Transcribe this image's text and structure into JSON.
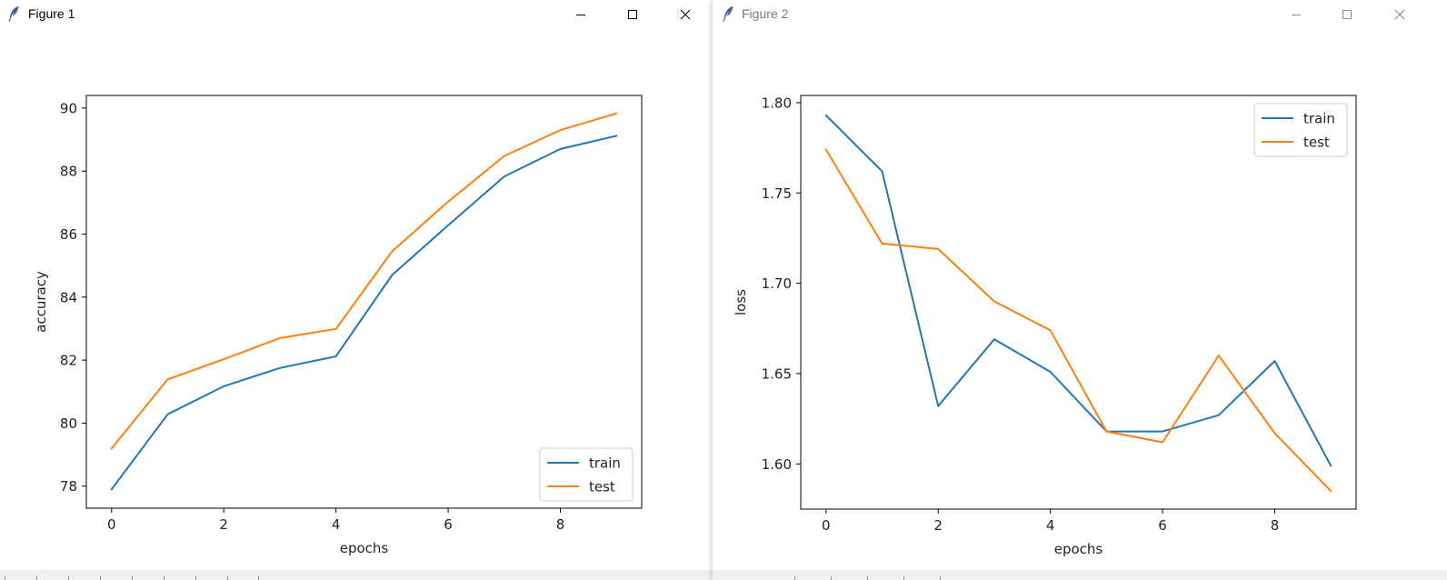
{
  "theme": {
    "train_color": "#1f77b4",
    "test_color": "#ff7f0e",
    "inactive_title_color": "#7a7a7a"
  },
  "windows": [
    {
      "title": "Figure 1",
      "active": true,
      "icons": [
        "feather-icon",
        "minimize-icon",
        "maximize-icon",
        "close-icon"
      ]
    },
    {
      "title": "Figure 2",
      "active": false,
      "icons": [
        "feather-icon",
        "minimize-icon",
        "maximize-icon",
        "close-icon"
      ]
    }
  ],
  "chart_data": [
    {
      "type": "line",
      "title": "",
      "xlabel": "epochs",
      "ylabel": "accuracy",
      "x": [
        0,
        1,
        2,
        3,
        4,
        5,
        6,
        7,
        8,
        9
      ],
      "xticks": [
        0,
        2,
        4,
        6,
        8
      ],
      "xtick_labels": [
        "0",
        "2",
        "4",
        "6",
        "8"
      ],
      "xlim": [
        -0.45,
        9.45
      ],
      "yticks": [
        78,
        80,
        82,
        84,
        86,
        88,
        90
      ],
      "ytick_labels": [
        "78",
        "80",
        "82",
        "84",
        "86",
        "88",
        "90"
      ],
      "ylim": [
        77.3,
        90.4
      ],
      "grid": false,
      "legend_position": "lower-right",
      "series": [
        {
          "name": "train",
          "color": "#1f77b4",
          "values": [
            77.9,
            80.28,
            81.17,
            81.75,
            82.12,
            84.7,
            86.28,
            87.83,
            88.7,
            89.12
          ]
        },
        {
          "name": "test",
          "color": "#ff7f0e",
          "values": [
            79.2,
            81.39,
            82.03,
            82.7,
            82.99,
            85.45,
            87.03,
            88.48,
            89.3,
            89.83
          ]
        }
      ]
    },
    {
      "type": "line",
      "title": "",
      "xlabel": "epochs",
      "ylabel": "loss",
      "x": [
        0,
        1,
        2,
        3,
        4,
        5,
        6,
        7,
        8,
        9
      ],
      "xticks": [
        0,
        2,
        4,
        6,
        8
      ],
      "xtick_labels": [
        "0",
        "2",
        "4",
        "6",
        "8"
      ],
      "xlim": [
        -0.45,
        9.45
      ],
      "yticks": [
        1.6,
        1.65,
        1.7,
        1.75,
        1.8
      ],
      "ytick_labels": [
        "1.60",
        "1.65",
        "1.70",
        "1.75",
        "1.80"
      ],
      "ylim": [
        1.575,
        1.804
      ],
      "grid": false,
      "legend_position": "upper-right",
      "series": [
        {
          "name": "train",
          "color": "#1f77b4",
          "values": [
            1.793,
            1.762,
            1.632,
            1.669,
            1.651,
            1.618,
            1.618,
            1.627,
            1.657,
            1.599
          ]
        },
        {
          "name": "test",
          "color": "#ff7f0e",
          "values": [
            1.774,
            1.722,
            1.719,
            1.69,
            1.674,
            1.618,
            1.612,
            1.66,
            1.617,
            1.585
          ]
        }
      ]
    }
  ]
}
